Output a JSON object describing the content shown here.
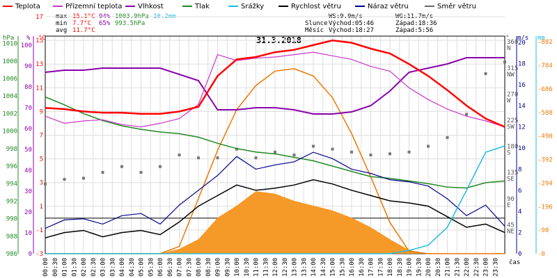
{
  "chart_data": {
    "type": "line",
    "title": "31.3.2018",
    "legend": [
      {
        "label": "Teplota",
        "color": "#ff0000"
      },
      {
        "label": "Přízemní teplota",
        "color": "#cc33cc"
      },
      {
        "label": "Vlhkost",
        "color": "#8800aa"
      },
      {
        "label": "Tlak",
        "color": "#228822"
      },
      {
        "label": "Srážky",
        "color": "#22bbdd"
      },
      {
        "label": "Rychlost větru",
        "color": "#000000"
      },
      {
        "label": "Náraz větru",
        "color": "#000088"
      },
      {
        "label": "Směr větru",
        "color": "#666666"
      }
    ],
    "stats": {
      "max": {
        "label": "max",
        "temp": "15.1°C",
        "hum": "94%",
        "press": "1003.9hPa",
        "rain": "10.2mm"
      },
      "min": {
        "label": "min",
        "temp": "7.7°C",
        "hum": "65%",
        "press": "993.5hPa"
      },
      "avg": {
        "label": "avg",
        "temp": "11.7°C"
      }
    },
    "info": {
      "ws": "WS:9.9m/s",
      "wg": "WG:11.7m/s",
      "sun_label": "Slunce",
      "sun_rise": "Východ:05:46",
      "sun_set": "Západ:18:36",
      "moon_label": "Měsíc",
      "moon_rise": "Východ:18:27",
      "moon_set": "Západ:5:56"
    },
    "axis_units": {
      "press": "hPa",
      "hum": "%",
      "temp": "°C",
      "dir": "°",
      "wind": "m/s",
      "rain": "mm",
      "time": "čas"
    },
    "axes": {
      "pressure": {
        "ticks": [
          "986",
          "988",
          "990",
          "992",
          "994",
          "996",
          "998",
          "1000",
          "1002",
          "1004",
          "1006",
          "1008",
          "1010"
        ]
      },
      "humidity": {
        "ticks": [
          "0",
          "10",
          "20",
          "30",
          "40",
          "50",
          "60",
          "70",
          "80",
          "90",
          "100"
        ]
      },
      "temperature": {
        "ticks": [
          "-3",
          "-1",
          "1",
          "3",
          "5",
          "7",
          "9",
          "11",
          "13",
          "15",
          "17",
          "19"
        ]
      },
      "direction": {
        "ticks": [
          {
            "deg": "45",
            "name": "NE"
          },
          {
            "deg": "90",
            "name": "E"
          },
          {
            "deg": "135",
            "name": "SE"
          },
          {
            "deg": "180",
            "name": "S"
          },
          {
            "deg": "225",
            "name": "SW"
          },
          {
            "deg": "270",
            "name": "W"
          },
          {
            "deg": "315",
            "name": "NW"
          },
          {
            "deg": "360",
            "name": "N"
          }
        ]
      },
      "wind": {
        "ticks": [
          "0",
          "2",
          "4",
          "6",
          "8",
          "10",
          "12",
          "14",
          "16",
          "18",
          "20"
        ]
      },
      "solar": {
        "ticks": [
          "0",
          "98",
          "196",
          "294",
          "392",
          "490",
          "588",
          "686",
          "784",
          "882"
        ]
      },
      "x": {
        "ticks": [
          "00:00",
          "00:30",
          "01:00",
          "01:30",
          "02:00",
          "02:30",
          "03:00",
          "03:30",
          "04:00",
          "04:30",
          "05:00",
          "05:30",
          "06:00",
          "06:30",
          "07:00",
          "07:30",
          "08:00",
          "08:30",
          "09:00",
          "09:30",
          "10:00",
          "10:30",
          "11:00",
          "11:30",
          "12:00",
          "12:30",
          "13:00",
          "13:30",
          "14:00",
          "14:30",
          "15:00",
          "15:30",
          "16:00",
          "16:30",
          "17:00",
          "17:30",
          "18:00",
          "18:30",
          "19:00",
          "19:30",
          "20:00",
          "20:30",
          "21:00",
          "21:30",
          "22:00",
          "22:30",
          "23:00",
          "23:30"
        ]
      }
    },
    "hours": [
      0,
      1,
      2,
      3,
      4,
      5,
      6,
      7,
      8,
      9,
      10,
      11,
      12,
      13,
      14,
      15,
      16,
      17,
      18,
      19,
      20,
      21,
      22,
      23,
      24
    ],
    "series": {
      "temperature": [
        9.3,
        9.2,
        9.0,
        8.9,
        8.9,
        8.8,
        8.8,
        9.0,
        9.4,
        12.0,
        13.4,
        13.6,
        14.0,
        14.2,
        14.6,
        15.0,
        14.8,
        14.3,
        13.9,
        13.0,
        12.0,
        10.8,
        9.5,
        8.4,
        7.7
      ],
      "ground_temp": [
        8.6,
        8.0,
        8.2,
        8.3,
        7.9,
        7.7,
        8.0,
        8.4,
        9.6,
        13.8,
        13.3,
        13.5,
        13.6,
        13.8,
        14.0,
        13.7,
        13.4,
        12.8,
        12.4,
        11.0,
        10.0,
        9.2,
        8.6,
        8.2,
        7.7
      ],
      "humidity": [
        87,
        88,
        88,
        89,
        89,
        89,
        89,
        86,
        83,
        69,
        69,
        70,
        70,
        69,
        67,
        67,
        68,
        71,
        78,
        87,
        89,
        91,
        94,
        94,
        94
      ],
      "pressure": [
        1003.9,
        1003.0,
        1002.0,
        1001.2,
        1000.6,
        1000.2,
        999.9,
        999.7,
        999.3,
        998.6,
        998.0,
        997.6,
        997.4,
        997.0,
        996.6,
        996.0,
        995.4,
        994.8,
        994.6,
        994.3,
        994.0,
        993.6,
        993.5,
        994.1,
        994.3
      ],
      "wind_speed": [
        1.5,
        2.0,
        2.2,
        1.6,
        2.0,
        2.2,
        1.8,
        3.0,
        4.5,
        5.5,
        6.5,
        6.0,
        6.2,
        6.5,
        7.0,
        6.6,
        6.0,
        5.5,
        5.0,
        4.8,
        4.5,
        3.5,
        2.5,
        2.8,
        2.0
      ],
      "wind_gust": [
        2.4,
        3.2,
        3.3,
        2.8,
        3.6,
        3.8,
        2.8,
        4.6,
        6.0,
        7.4,
        9.2,
        8.0,
        8.4,
        8.7,
        9.6,
        9.0,
        8.0,
        7.6,
        7.0,
        6.8,
        6.4,
        5.2,
        3.6,
        4.6,
        2.6
      ],
      "wind_dir": [
        120,
        128,
        130,
        140,
        150,
        140,
        150,
        170,
        165,
        165,
        180,
        165,
        175,
        170,
        185,
        180,
        175,
        170,
        172,
        175,
        185,
        200,
        240,
        310,
        330
      ],
      "solar": [
        0,
        0,
        0,
        0,
        0,
        0,
        0,
        20,
        60,
        150,
        200,
        260,
        250,
        220,
        200,
        180,
        150,
        110,
        60,
        15,
        0,
        0,
        0,
        0,
        0
      ],
      "solar_theoretical": [
        0,
        0,
        0,
        0,
        0,
        0,
        0,
        30,
        230,
        430,
        600,
        700,
        760,
        770,
        740,
        650,
        500,
        320,
        130,
        10,
        0,
        0,
        0,
        0,
        0
      ],
      "rain_cum": [
        0,
        0,
        0,
        0,
        0,
        0,
        0,
        0,
        0,
        0,
        0,
        0,
        0,
        0,
        0,
        0,
        0,
        0,
        0,
        0.3,
        0.8,
        2.5,
        6.0,
        9.6,
        10.2
      ]
    }
  }
}
